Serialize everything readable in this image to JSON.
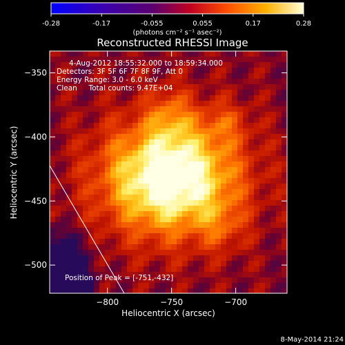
{
  "chart_data": {
    "type": "heatmap",
    "title": "Reconstructed RHESSI Image",
    "xlabel": "Heliocentric X (arcsec)",
    "ylabel": "Heliocentric Y (arcsec)",
    "xlim": [
      -845,
      -660
    ],
    "ylim": [
      -522,
      -333
    ],
    "xticks": [
      -800,
      -750,
      -700
    ],
    "yticks": [
      -350,
      -400,
      -450,
      -500
    ],
    "colorbar": {
      "range": [
        -0.28,
        0.28
      ],
      "ticks": [
        "-0.28",
        "-0.17",
        "-0.055",
        "0.055",
        "0.17",
        "0.28"
      ],
      "unit_label": "(photons cm⁻² s⁻¹ asec⁻²)"
    },
    "peak": {
      "x": -751,
      "y": -432
    },
    "annotations": {
      "time": "4-Aug-2012 18:55:32.000 to 18:59:34.000",
      "detectors": "Detectors: 3F 5F 6F 7F 8F 9F, Att 0",
      "energy": "Energy Range: 3.0 - 6.0 keV",
      "clean": "Clean     Total counts: 9.47E+04",
      "peak_text": "Position of Peak = [-751,-432]"
    },
    "grid": false,
    "colormap": "hot-on-blue"
  },
  "footer": {
    "date": "8-May-2014 21:24"
  }
}
